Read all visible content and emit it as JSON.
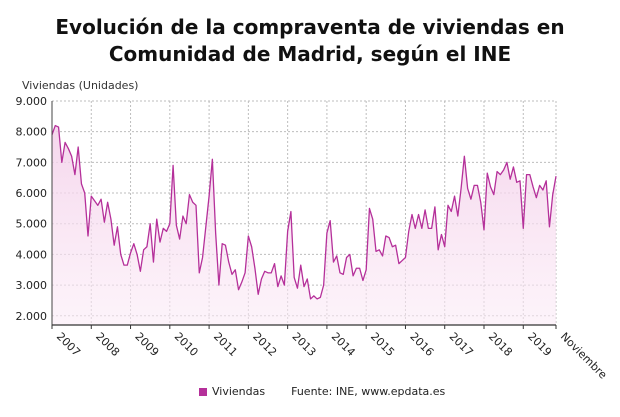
{
  "chart_data": {
    "type": "area",
    "title": "Evolución de la compraventa de viviendas en Comunidad de Madrid, según el INE",
    "ylabel": "Viviendas (Unidades)",
    "xlabel": "",
    "ylim": [
      1700,
      9000
    ],
    "yticks": [
      2000,
      3000,
      4000,
      5000,
      6000,
      7000,
      8000,
      9000
    ],
    "ytick_labels": [
      "2.000",
      "3.000",
      "4.000",
      "5.000",
      "6.000",
      "7.000",
      "8.000",
      "9.000"
    ],
    "xtick_labels": [
      "2007",
      "2008",
      "2009",
      "2010",
      "2011",
      "2012",
      "2013",
      "2014",
      "2015",
      "2016",
      "2017",
      "2018",
      "2019",
      "Noviembre"
    ],
    "start": "2007-01",
    "end": "2019-11",
    "grid": true,
    "legend_position": "bottom",
    "color": "#b5309a",
    "series": [
      {
        "name": "Viviendas",
        "values": [
          7900,
          8200,
          8150,
          7000,
          7650,
          7450,
          7200,
          6600,
          7500,
          6300,
          6000,
          4600,
          5900,
          5750,
          5600,
          5800,
          5050,
          5700,
          5150,
          4300,
          4900,
          4000,
          3650,
          3650,
          4050,
          4350,
          4000,
          3450,
          4150,
          4250,
          5000,
          3750,
          5150,
          4400,
          4850,
          4750,
          5000,
          6900,
          4950,
          4500,
          5250,
          5000,
          5950,
          5700,
          5600,
          3400,
          3900,
          4900,
          5900,
          7100,
          4700,
          3000,
          4350,
          4300,
          3750,
          3350,
          3500,
          2850,
          3100,
          3400,
          4600,
          4250,
          3550,
          2700,
          3200,
          3450,
          3400,
          3400,
          3700,
          2950,
          3300,
          3000,
          4750,
          5400,
          3250,
          2900,
          3650,
          2950,
          3200,
          2550,
          2650,
          2550,
          2600,
          3000,
          4700,
          5100,
          3750,
          3950,
          3400,
          3350,
          3900,
          4000,
          3300,
          3550,
          3550,
          3150,
          3500,
          5500,
          5150,
          4100,
          4150,
          3950,
          4600,
          4550,
          4250,
          4300,
          3700,
          3800,
          3900,
          4750,
          5300,
          4850,
          5300,
          4850,
          5450,
          4850,
          4850,
          5550,
          4150,
          4650,
          4250,
          5600,
          5400,
          5900,
          5250,
          6150,
          7200,
          6150,
          5800,
          6250,
          6250,
          5700,
          4800,
          6650,
          6200,
          5950,
          6700,
          6600,
          6750,
          7000,
          6450,
          6850,
          6350,
          6400,
          4850,
          6600,
          6600,
          6200,
          5850,
          6250,
          6100,
          6400,
          4900,
          5950,
          6550
        ]
      }
    ],
    "legend_label": "Viviendas",
    "source": "Fuente: INE, www.epdata.es"
  }
}
